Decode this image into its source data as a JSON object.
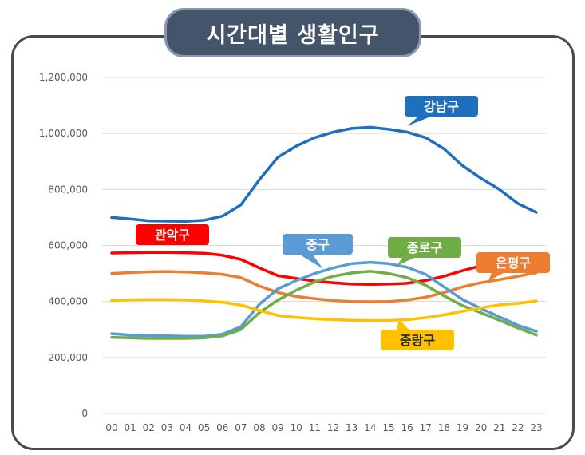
{
  "title": "시간대별 생활인구",
  "colors": {
    "gangnam": "#1f6fbf",
    "gwanak": "#ff0000",
    "eunpyeong": "#ed7d31",
    "jung": "#5b9bd5",
    "jongno": "#70ad47",
    "jungnang": "#ffc000",
    "title_bg": "#44546a"
  },
  "chart_data": {
    "type": "line",
    "title": "시간대별 생활인구",
    "xlabel": "",
    "ylabel": "",
    "ylim": [
      0,
      1200000
    ],
    "yticks": [
      0,
      200000,
      400000,
      600000,
      800000,
      1000000,
      1200000
    ],
    "ytick_labels": [
      "0",
      "200,000",
      "400,000",
      "600,000",
      "800,000",
      "1,000,000",
      "1,200,000"
    ],
    "grid": true,
    "x": [
      "00",
      "01",
      "02",
      "03",
      "04",
      "05",
      "06",
      "07",
      "08",
      "09",
      "10",
      "11",
      "12",
      "13",
      "14",
      "15",
      "16",
      "17",
      "18",
      "19",
      "20",
      "21",
      "22",
      "23"
    ],
    "series": [
      {
        "name": "강남구",
        "color_key": "gangnam",
        "values": [
          700000,
          695000,
          688000,
          687000,
          686000,
          690000,
          705000,
          745000,
          835000,
          915000,
          955000,
          985000,
          1005000,
          1018000,
          1022000,
          1015000,
          1005000,
          985000,
          945000,
          885000,
          840000,
          800000,
          750000,
          718000
        ]
      },
      {
        "name": "관악구",
        "color_key": "gwanak",
        "values": [
          573000,
          574000,
          575000,
          575000,
          574000,
          572000,
          565000,
          550000,
          520000,
          492000,
          482000,
          473000,
          467000,
          462000,
          461000,
          462000,
          465000,
          475000,
          490000,
          510000,
          527000,
          542000,
          555000,
          567000
        ]
      },
      {
        "name": "은평구",
        "color_key": "eunpyeong",
        "values": [
          500000,
          503000,
          506000,
          507000,
          505000,
          502000,
          497000,
          485000,
          455000,
          432000,
          418000,
          410000,
          403000,
          400000,
          399000,
          400000,
          405000,
          415000,
          432000,
          452000,
          467000,
          478000,
          490000,
          503000
        ]
      },
      {
        "name": "중구",
        "color_key": "jung",
        "values": [
          285000,
          280000,
          278000,
          277000,
          276000,
          276000,
          283000,
          310000,
          390000,
          445000,
          475000,
          500000,
          520000,
          535000,
          540000,
          535000,
          522000,
          497000,
          452000,
          407000,
          375000,
          345000,
          315000,
          293000
        ]
      },
      {
        "name": "종로구",
        "color_key": "jongno",
        "values": [
          272000,
          270000,
          268000,
          268000,
          268000,
          270000,
          277000,
          300000,
          360000,
          405000,
          440000,
          470000,
          490000,
          502000,
          508000,
          500000,
          485000,
          458000,
          420000,
          385000,
          360000,
          333000,
          305000,
          280000
        ]
      },
      {
        "name": "중랑구",
        "color_key": "jungnang",
        "values": [
          403000,
          406000,
          407000,
          407000,
          406000,
          402000,
          397000,
          387000,
          368000,
          350000,
          343000,
          338000,
          335000,
          333000,
          332000,
          332000,
          335000,
          342000,
          352000,
          365000,
          377000,
          388000,
          393000,
          402000
        ]
      }
    ]
  }
}
